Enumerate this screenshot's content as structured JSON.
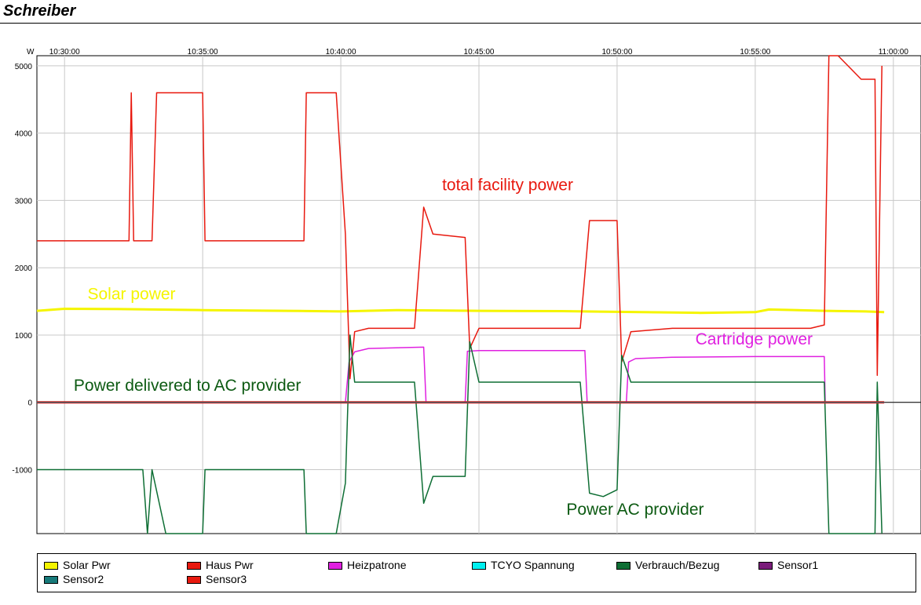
{
  "window": {
    "title": "Schreiber"
  },
  "chart_data": {
    "type": "line",
    "x_unit": "time",
    "y_unit": "W",
    "xlim": [
      "10:29:00",
      "11:01:00"
    ],
    "ylim": [
      -1950,
      5150
    ],
    "x_ticks": [
      "10:30:00",
      "10:35:00",
      "10:40:00",
      "10:45:00",
      "10:50:00",
      "10:55:00",
      "11:00:00"
    ],
    "y_ticks": [
      5000,
      4000,
      3000,
      2000,
      1000,
      0,
      -1000
    ],
    "grid": true,
    "legend_position": "bottom",
    "annotations": [
      {
        "text": "total facility power",
        "color": "#e8190f",
        "x": "10:43:40",
        "y": 3150
      },
      {
        "text": "Solar power",
        "color": "#f5f500",
        "x": "10:30:50",
        "y": 1530
      },
      {
        "text": "Cartridge power",
        "color": "#e020e0",
        "x": "10:52:50",
        "y": 860
      },
      {
        "text": "Power delivered to AC provider",
        "color": "#0c5a12",
        "x": "10:30:20",
        "y": 170
      },
      {
        "text": "Power AC provider",
        "color": "#0c5a12",
        "x": "10:48:10",
        "y": -1670
      }
    ],
    "series": [
      {
        "name": "Solar Pwr",
        "color": "#f5f500",
        "width": 3,
        "points": [
          [
            "10:29:00",
            1360
          ],
          [
            "10:30:00",
            1390
          ],
          [
            "10:32:00",
            1385
          ],
          [
            "10:35:00",
            1370
          ],
          [
            "10:38:00",
            1360
          ],
          [
            "10:40:00",
            1350
          ],
          [
            "10:42:00",
            1370
          ],
          [
            "10:45:00",
            1360
          ],
          [
            "10:48:00",
            1355
          ],
          [
            "10:50:00",
            1345
          ],
          [
            "10:53:00",
            1330
          ],
          [
            "10:55:00",
            1340
          ],
          [
            "10:55:30",
            1380
          ],
          [
            "10:57:30",
            1360
          ],
          [
            "10:59:00",
            1350
          ],
          [
            "10:59:40",
            1340
          ]
        ]
      },
      {
        "name": "Heizpatrone",
        "color": "#e020e0",
        "width": 1.5,
        "points": [
          [
            "10:29:00",
            0
          ],
          [
            "10:40:00",
            0
          ],
          [
            "10:40:10",
            0
          ],
          [
            "10:40:18",
            600
          ],
          [
            "10:40:30",
            750
          ],
          [
            "10:41:00",
            800
          ],
          [
            "10:43:00",
            820
          ],
          [
            "10:43:05",
            0
          ],
          [
            "10:44:30",
            0
          ],
          [
            "10:44:35",
            760
          ],
          [
            "10:45:00",
            770
          ],
          [
            "10:48:50",
            770
          ],
          [
            "10:48:55",
            0
          ],
          [
            "10:50:20",
            0
          ],
          [
            "10:50:25",
            600
          ],
          [
            "10:50:40",
            650
          ],
          [
            "10:52:00",
            670
          ],
          [
            "10:55:00",
            680
          ],
          [
            "10:57:30",
            680
          ],
          [
            "10:57:32",
            0
          ],
          [
            "10:59:40",
            0
          ]
        ]
      },
      {
        "name": "Haus Pwr",
        "color": "#e8190f",
        "width": 1.5,
        "points": [
          [
            "10:29:00",
            2400
          ],
          [
            "10:32:20",
            2400
          ],
          [
            "10:32:25",
            4600
          ],
          [
            "10:32:30",
            2400
          ],
          [
            "10:33:10",
            2400
          ],
          [
            "10:33:20",
            4600
          ],
          [
            "10:35:00",
            4600
          ],
          [
            "10:35:05",
            2400
          ],
          [
            "10:38:40",
            2400
          ],
          [
            "10:38:45",
            4600
          ],
          [
            "10:39:50",
            4600
          ],
          [
            "10:40:10",
            2500
          ],
          [
            "10:40:20",
            350
          ],
          [
            "10:40:30",
            1050
          ],
          [
            "10:41:00",
            1100
          ],
          [
            "10:42:40",
            1100
          ],
          [
            "10:43:00",
            2900
          ],
          [
            "10:43:20",
            2500
          ],
          [
            "10:44:30",
            2450
          ],
          [
            "10:44:40",
            800
          ],
          [
            "10:45:00",
            1100
          ],
          [
            "10:48:40",
            1100
          ],
          [
            "10:49:00",
            2700
          ],
          [
            "10:49:30",
            2700
          ],
          [
            "10:50:00",
            2700
          ],
          [
            "10:50:10",
            600
          ],
          [
            "10:50:30",
            1050
          ],
          [
            "10:52:00",
            1100
          ],
          [
            "10:57:00",
            1100
          ],
          [
            "10:57:30",
            1150
          ],
          [
            "10:57:40",
            5150
          ],
          [
            "10:58:00",
            5150
          ],
          [
            "10:58:50",
            4800
          ],
          [
            "10:59:20",
            4800
          ],
          [
            "10:59:25",
            400
          ],
          [
            "10:59:35",
            5000
          ]
        ]
      },
      {
        "name": "Verbrauch/Bezug",
        "color": "#0e6e34",
        "width": 1.5,
        "points": [
          [
            "10:29:00",
            -1000
          ],
          [
            "10:32:50",
            -1000
          ],
          [
            "10:33:00",
            -1950
          ],
          [
            "10:33:10",
            -1000
          ],
          [
            "10:33:40",
            -1950
          ],
          [
            "10:35:00",
            -1950
          ],
          [
            "10:35:05",
            -1000
          ],
          [
            "10:38:40",
            -1000
          ],
          [
            "10:38:45",
            -1950
          ],
          [
            "10:39:50",
            -1950
          ],
          [
            "10:40:10",
            -1200
          ],
          [
            "10:40:20",
            1000
          ],
          [
            "10:40:30",
            300
          ],
          [
            "10:42:40",
            300
          ],
          [
            "10:43:00",
            -1500
          ],
          [
            "10:43:20",
            -1100
          ],
          [
            "10:44:30",
            -1100
          ],
          [
            "10:44:40",
            900
          ],
          [
            "10:45:00",
            300
          ],
          [
            "10:48:40",
            300
          ],
          [
            "10:49:00",
            -1350
          ],
          [
            "10:49:30",
            -1400
          ],
          [
            "10:50:00",
            -1300
          ],
          [
            "10:50:10",
            700
          ],
          [
            "10:50:30",
            300
          ],
          [
            "10:55:00",
            300
          ],
          [
            "10:57:30",
            300
          ],
          [
            "10:57:40",
            -1950
          ],
          [
            "10:59:20",
            -1950
          ],
          [
            "10:59:25",
            300
          ],
          [
            "10:59:35",
            -1950
          ]
        ]
      },
      {
        "name": "Sensor3",
        "color": "#e8190f",
        "width": 3,
        "points": [
          [
            "10:29:00",
            0
          ],
          [
            "10:59:40",
            0
          ]
        ]
      },
      {
        "name": "Sensor1",
        "color": "#7a1c7a",
        "width": 1,
        "points": [
          [
            "10:29:00",
            0
          ],
          [
            "10:59:40",
            0
          ]
        ]
      },
      {
        "name": "Sensor2",
        "color": "#177a7a",
        "width": 1,
        "points": [
          [
            "10:29:00",
            0
          ],
          [
            "10:59:40",
            0
          ]
        ]
      },
      {
        "name": "TCYO Spannung",
        "color": "#00f0f0",
        "width": 1,
        "points": []
      }
    ]
  },
  "legend": {
    "items": [
      {
        "label": "Solar Pwr",
        "color": "#f5f500"
      },
      {
        "label": "Haus Pwr",
        "color": "#e8190f"
      },
      {
        "label": "Heizpatrone",
        "color": "#e020e0"
      },
      {
        "label": "TCYO Spannung",
        "color": "#00f0f0"
      },
      {
        "label": "Verbrauch/Bezug",
        "color": "#0e6e34"
      },
      {
        "label": "Sensor1",
        "color": "#7a1c7a"
      },
      {
        "label": "Sensor2",
        "color": "#177a7a"
      },
      {
        "label": "Sensor3",
        "color": "#e8190f"
      }
    ]
  }
}
